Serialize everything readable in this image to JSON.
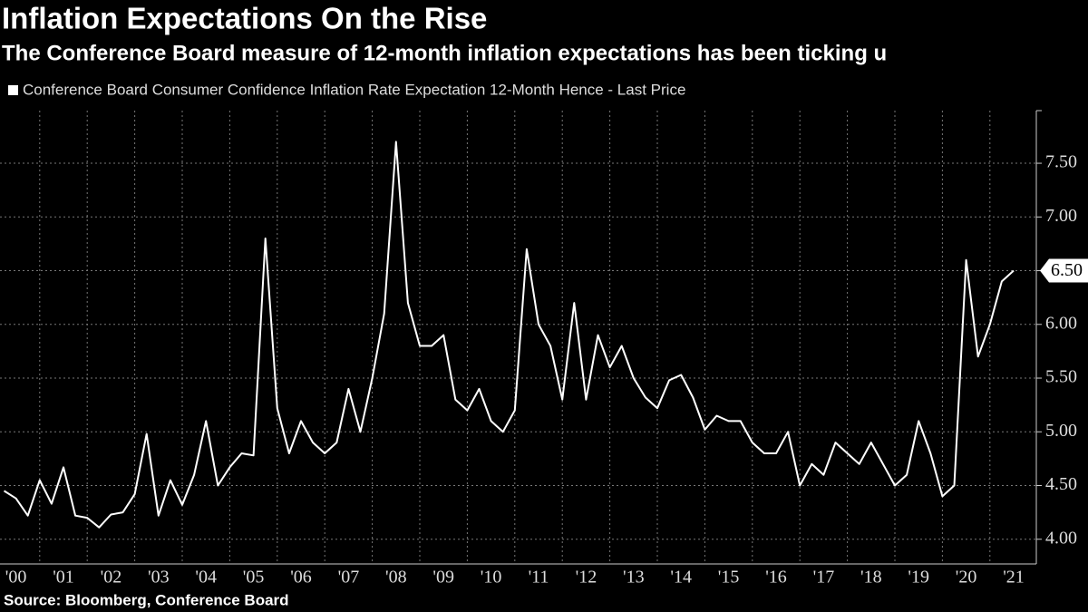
{
  "chart_data": {
    "type": "line",
    "title": "Inflation Expectations On the Rise",
    "subtitle": "The Conference Board measure of 12-month inflation expectations has been ticking u",
    "source": "Source: Bloomberg, Conference Board",
    "categories": [
      null,
      "'00",
      null,
      null,
      null,
      "'01",
      null,
      null,
      null,
      "'02",
      null,
      null,
      null,
      "'03",
      null,
      null,
      null,
      "'04",
      null,
      null,
      null,
      "'05",
      null,
      null,
      null,
      "'06",
      null,
      null,
      null,
      "'07",
      null,
      null,
      null,
      "'08",
      null,
      null,
      null,
      "'09",
      null,
      null,
      null,
      "'10",
      null,
      null,
      null,
      "'11",
      null,
      null,
      null,
      "'12",
      null,
      null,
      null,
      "'13",
      null,
      null,
      null,
      "'14",
      null,
      null,
      null,
      "'15",
      null,
      null,
      null,
      "'16",
      null,
      null,
      null,
      "'17",
      null,
      null,
      null,
      "'18",
      null,
      null,
      null,
      "'19",
      null,
      null,
      null,
      "'20",
      null,
      null,
      null,
      "'21"
    ],
    "series": [
      {
        "name": "Conference Board Consumer Confidence Inflation Rate Expectation 12-Month Hence - Last Price",
        "color": "#ffffff",
        "values": [
          4.45,
          4.38,
          4.22,
          4.55,
          4.33,
          4.67,
          4.22,
          4.2,
          4.11,
          4.23,
          4.25,
          4.42,
          4.98,
          4.22,
          4.55,
          4.32,
          4.6,
          5.1,
          4.5,
          4.67,
          4.8,
          4.78,
          6.8,
          5.22,
          4.8,
          5.1,
          4.9,
          4.8,
          4.9,
          5.4,
          5.0,
          5.5,
          6.1,
          7.7,
          6.2,
          5.8,
          5.8,
          5.9,
          5.3,
          5.2,
          5.4,
          5.1,
          5.0,
          5.2,
          6.7,
          6.0,
          5.8,
          5.3,
          6.2,
          5.3,
          5.9,
          5.6,
          5.8,
          5.5,
          5.32,
          5.22,
          5.48,
          5.53,
          5.32,
          5.02,
          5.15,
          5.1,
          5.1,
          4.9,
          4.8,
          4.8,
          5.0,
          4.5,
          4.7,
          4.6,
          4.9,
          4.8,
          4.7,
          4.9,
          4.7,
          4.5,
          4.6,
          5.1,
          4.8,
          4.4,
          4.5,
          6.6,
          5.7,
          6.0,
          6.4,
          6.5
        ],
        "value_labels": [
          null,
          null,
          null,
          null,
          null,
          null,
          null,
          null,
          null,
          null,
          null,
          null,
          null,
          null,
          null,
          null,
          null,
          null,
          null,
          null,
          null,
          null,
          null,
          null,
          null,
          null,
          null,
          null,
          null,
          null,
          null,
          null,
          null,
          null,
          null,
          null,
          null,
          null,
          null,
          null,
          null,
          null,
          null,
          null,
          null,
          null,
          null,
          null,
          null,
          null,
          null,
          null,
          null,
          null,
          null,
          null,
          null,
          null,
          null,
          null,
          null,
          null,
          null,
          null,
          null,
          null,
          null,
          null,
          null,
          null,
          null,
          null,
          null,
          null,
          null,
          null,
          null,
          null,
          null,
          null,
          null,
          null,
          null,
          null,
          null,
          "6.50"
        ]
      }
    ],
    "ylim": [
      3.77,
      7.99
    ],
    "yticks": [
      {
        "value": 4,
        "label": "4.00"
      },
      {
        "value": 4.5,
        "label": "4.50"
      },
      {
        "value": 5,
        "label": "5.00"
      },
      {
        "value": 5.5,
        "label": "5.50"
      },
      {
        "value": 6,
        "label": "6.00"
      },
      {
        "value": 6.5,
        "label": "6.50"
      },
      {
        "value": 7,
        "label": "7.00"
      },
      {
        "value": 7.5,
        "label": "7.50"
      }
    ],
    "grid": true
  }
}
